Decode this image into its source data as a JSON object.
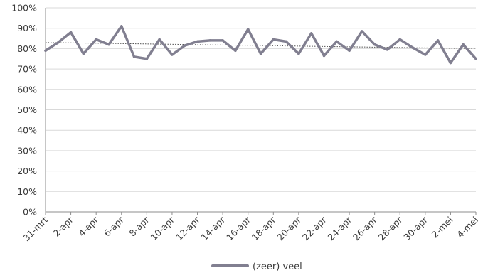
{
  "chart_data": {
    "type": "line",
    "title": "",
    "xlabel": "",
    "ylabel": "",
    "ylim": [
      0,
      100
    ],
    "y_ticks": [
      "0%",
      "10%",
      "20%",
      "30%",
      "40%",
      "50%",
      "60%",
      "70%",
      "80%",
      "90%",
      "100%"
    ],
    "y_tick_values": [
      0,
      10,
      20,
      30,
      40,
      50,
      60,
      70,
      80,
      90,
      100
    ],
    "x_tick_labels": [
      "31-mrt",
      "2-apr",
      "4-apr",
      "6-apr",
      "8-apr",
      "10-apr",
      "12-apr",
      "14-apr",
      "16-apr",
      "18-apr",
      "20-apr",
      "22-apr",
      "24-apr",
      "26-apr",
      "28-apr",
      "30-apr",
      "2-mei",
      "4-mei"
    ],
    "x_tick_positions": [
      0,
      2,
      4,
      6,
      8,
      10,
      12,
      14,
      16,
      18,
      20,
      22,
      24,
      26,
      28,
      30,
      32,
      34
    ],
    "grid": "horizontal",
    "legend": "bottom",
    "series": [
      {
        "name": "(zeer) veel",
        "color": "#817f90",
        "values": [
          79,
          83,
          88,
          77.5,
          84.5,
          82,
          91,
          76,
          75,
          84.5,
          77,
          81.5,
          83.5,
          84,
          84,
          79,
          89.5,
          77.5,
          84.5,
          83.5,
          77.5,
          87.5,
          76.5,
          83.5,
          79,
          88.5,
          82,
          79.5,
          84.5,
          80.5,
          77,
          84,
          73,
          82,
          75
        ]
      }
    ],
    "trendline": {
      "style": "dotted",
      "color": "#555555",
      "start_value": 83,
      "end_value": 80
    }
  }
}
